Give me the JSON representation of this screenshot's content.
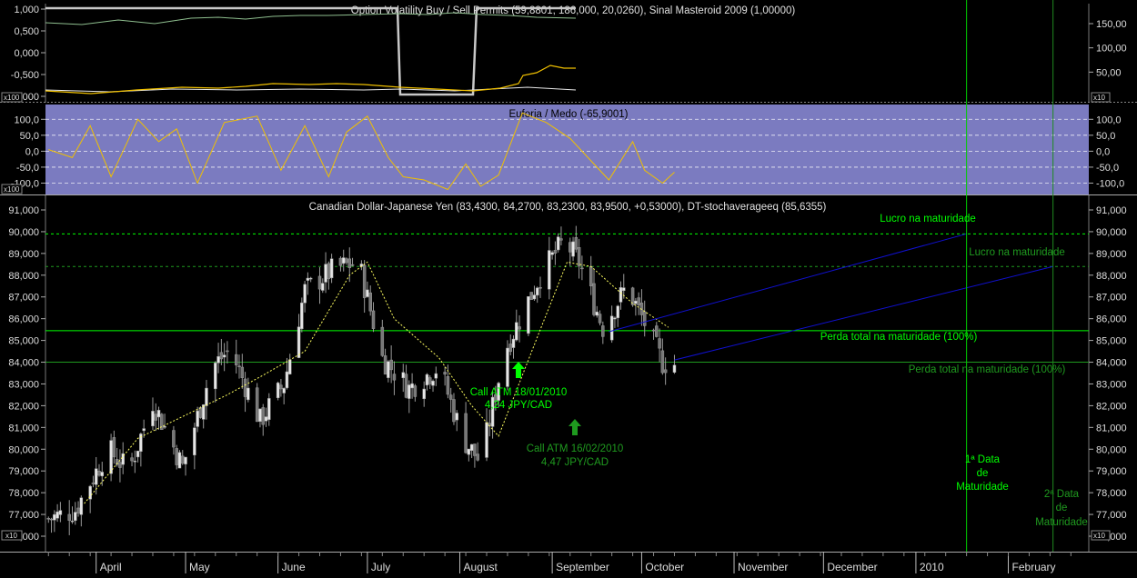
{
  "panel1": {
    "title": "Option Volatility Buy / Sell Permits (59,8801, 186,000, 20,0260), Sinal Masteroid 2009 (1,00000)",
    "left_ticks": [
      "1,000",
      "0,500",
      "0,000",
      "-0,500",
      "-1,000"
    ],
    "right_ticks": [
      "150,00",
      "100,00",
      "50,00"
    ],
    "scale_label_left": "x100",
    "scale_label_right": "x10",
    "colors": {
      "permit": "#c8c8c8",
      "signal": "#e8e8e8",
      "green_line": "#8fbf8f",
      "yellow": "#f0c000"
    }
  },
  "panel2": {
    "title": "Euforia / Medo (-65,9001)",
    "ticks": [
      "100,0",
      "50,0",
      "0,0",
      "-50,0",
      "-100,0"
    ],
    "scale_label": "x100",
    "colors": {
      "background": "#7b7bc0",
      "line": "#f0c000",
      "grid": "#ffffff"
    }
  },
  "panel3": {
    "title": "Canadian Dollar-Japanese Yen (83,4300, 84,2700, 83,2300, 83,9500, +0,53000), DT-stochaverageeq (85,6355)",
    "scale_label_left": "x10",
    "scale_label_right": "x10",
    "annotations": {
      "lucro1": "Lucro na maturidade",
      "lucro2": "Lucro na maturidade",
      "perda1": "Perda total na maturidade (100%)",
      "perda2": "Perda total na maturidade (100%)",
      "call1_line1": "Call ATM 18/01/2010",
      "call1_line2": "4,24 JPY/CAD",
      "call2_line1": "Call ATM 16/02/2010",
      "call2_line2": "4,47 JPY/CAD",
      "mat1_line1": "1ª Data",
      "mat1_line2": "de",
      "mat1_line3": "Maturidade",
      "mat2_line1": "2ª Data",
      "mat2_line2": "de",
      "mat2_line3": "Maturidade"
    },
    "colors": {
      "bright_green": "#00ff00",
      "dark_green": "#1f9a1f",
      "blue": "#1010d0",
      "candle": "#bfbfbf",
      "avg": "#ffff60"
    }
  },
  "x_axis": {
    "months": [
      "April",
      "May",
      "June",
      "July",
      "August",
      "September",
      "October",
      "November",
      "December",
      "2010",
      "February"
    ]
  },
  "chart_data": {
    "type": "candlestick",
    "title": "Canadian Dollar-Japanese Yen (83,4300, 84,2700, 83,2300, 83,9500, +0,53000), DT-stochaverageeq (85,6355)",
    "y_axis": {
      "ticks": [
        76,
        77,
        78,
        79,
        80,
        81,
        82,
        83,
        84,
        85,
        86,
        87,
        88,
        89,
        90,
        91
      ],
      "tick_labels": [
        "76,000",
        "77,000",
        "78,000",
        "79,000",
        "80,000",
        "81,000",
        "82,000",
        "83,000",
        "84,000",
        "85,000",
        "86,000",
        "87,000",
        "88,000",
        "89,000",
        "90,000",
        "91,000"
      ],
      "ylim": [
        75.6,
        91.2
      ]
    },
    "x_range": [
      "2009-03-15",
      "2010-02-28"
    ],
    "close_keypoints": [
      [
        "2009-03-16",
        76.8
      ],
      [
        "2009-03-25",
        77.2
      ],
      [
        "2009-04-05",
        80.0
      ],
      [
        "2009-04-12",
        79.0
      ],
      [
        "2009-04-20",
        82.2
      ],
      [
        "2009-04-30",
        79.2
      ],
      [
        "2009-05-10",
        83.8
      ],
      [
        "2009-05-16",
        84.6
      ],
      [
        "2009-05-26",
        81.3
      ],
      [
        "2009-06-03",
        83.0
      ],
      [
        "2009-06-10",
        87.3
      ],
      [
        "2009-06-20",
        88.3
      ],
      [
        "2009-06-28",
        88.6
      ],
      [
        "2009-07-06",
        84.2
      ],
      [
        "2009-07-15",
        82.8
      ],
      [
        "2009-07-25",
        83.8
      ],
      [
        "2009-08-02",
        80.5
      ],
      [
        "2009-08-08",
        79.4
      ],
      [
        "2009-08-16",
        84.5
      ],
      [
        "2009-08-28",
        88.0
      ],
      [
        "2009-09-05",
        89.6
      ],
      [
        "2009-09-10",
        88.6
      ],
      [
        "2009-09-18",
        85.6
      ],
      [
        "2009-09-26",
        87.5
      ],
      [
        "2009-10-02",
        85.8
      ],
      [
        "2009-10-08",
        84.0
      ],
      [
        "2009-10-12",
        83.9
      ]
    ],
    "avg_keypoints": [
      [
        "2009-03-28",
        77.5
      ],
      [
        "2009-04-15",
        80.5
      ],
      [
        "2009-04-30",
        81.5
      ],
      [
        "2009-05-15",
        82.5
      ],
      [
        "2009-05-27",
        83.4
      ],
      [
        "2009-06-10",
        84.5
      ],
      [
        "2009-06-25",
        88.0
      ],
      [
        "2009-07-01",
        88.6
      ],
      [
        "2009-07-10",
        86.0
      ],
      [
        "2009-07-25",
        84.2
      ],
      [
        "2009-08-05",
        82.0
      ],
      [
        "2009-08-14",
        80.6
      ],
      [
        "2009-08-28",
        85.5
      ],
      [
        "2009-09-06",
        88.6
      ],
      [
        "2009-09-14",
        88.4
      ],
      [
        "2009-09-28",
        86.7
      ],
      [
        "2009-10-10",
        85.6
      ]
    ],
    "horizontal_lines": [
      {
        "value": 89.9,
        "style": "dashed",
        "label": "Lucro na maturidade"
      },
      {
        "value": 88.4,
        "style": "dashed",
        "label": "Lucro na maturidade"
      },
      {
        "value": 85.45,
        "style": "solid",
        "label": "Perda total na maturidade (100%)"
      },
      {
        "value": 84.0,
        "style": "solid",
        "label": "Perda total na maturidade (100%)"
      }
    ],
    "trend_lines": [
      {
        "from": [
          "2009-09-20",
          85.4
        ],
        "to": [
          "2010-01-18",
          89.9
        ]
      },
      {
        "from": [
          "2009-10-12",
          84.1
        ],
        "to": [
          "2010-02-16",
          88.4
        ]
      }
    ],
    "vertical_markers": [
      "2010-01-18",
      "2010-02-16"
    ],
    "euforia_medo": {
      "ticks": [
        100,
        50,
        0,
        -50,
        -100
      ],
      "ylim": [
        -130,
        135
      ],
      "last_value": -65.9001,
      "keypoints": [
        [
          "2009-03-16",
          5
        ],
        [
          "2009-03-24",
          -20
        ],
        [
          "2009-03-30",
          80
        ],
        [
          "2009-04-06",
          -80
        ],
        [
          "2009-04-15",
          100
        ],
        [
          "2009-04-22",
          30
        ],
        [
          "2009-04-28",
          70
        ],
        [
          "2009-05-05",
          -100
        ],
        [
          "2009-05-14",
          90
        ],
        [
          "2009-05-25",
          110
        ],
        [
          "2009-06-02",
          -60
        ],
        [
          "2009-06-10",
          80
        ],
        [
          "2009-06-18",
          -80
        ],
        [
          "2009-06-24",
          60
        ],
        [
          "2009-07-01",
          110
        ],
        [
          "2009-07-08",
          -20
        ],
        [
          "2009-07-13",
          -80
        ],
        [
          "2009-07-20",
          -90
        ],
        [
          "2009-07-28",
          -120
        ],
        [
          "2009-08-03",
          -40
        ],
        [
          "2009-08-08",
          -110
        ],
        [
          "2009-08-14",
          -75
        ],
        [
          "2009-08-22",
          120
        ],
        [
          "2009-08-30",
          90
        ],
        [
          "2009-09-07",
          40
        ],
        [
          "2009-09-13",
          -20
        ],
        [
          "2009-09-20",
          -90
        ],
        [
          "2009-09-28",
          30
        ],
        [
          "2009-10-02",
          -60
        ],
        [
          "2009-10-08",
          -100
        ],
        [
          "2009-10-12",
          -66
        ]
      ]
    },
    "option_permits": {
      "left_ticks": [
        1,
        0.5,
        0,
        -0.5,
        -1
      ],
      "right_ticks": [
        150,
        100,
        50
      ]
    }
  }
}
